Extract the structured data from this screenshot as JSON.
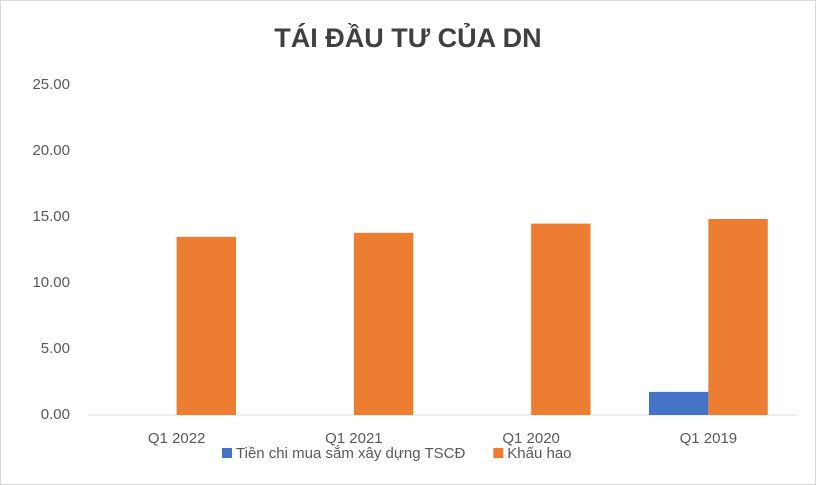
{
  "chart_data": {
    "type": "bar",
    "title": "TÁI ĐẦU TƯ CỦA DN",
    "categories": [
      "Q1 2022",
      "Q1 2021",
      "Q1 2020",
      "Q1 2019"
    ],
    "series": [
      {
        "name": "Tiền chi mua sắm xây dựng TSCĐ",
        "color": "#4472c4",
        "values": [
          0,
          0,
          0,
          1.75
        ]
      },
      {
        "name": "Khấu hao",
        "color": "#ed7d31",
        "values": [
          13.5,
          13.8,
          14.5,
          14.85
        ]
      }
    ],
    "ylim": [
      0,
      25
    ],
    "yticks": [
      {
        "value": 0,
        "label": "0.00"
      },
      {
        "value": 5,
        "label": "5.00"
      },
      {
        "value": 10,
        "label": "10.00"
      },
      {
        "value": 15,
        "label": "15.00"
      },
      {
        "value": 20,
        "label": "20.00"
      },
      {
        "value": 25,
        "label": "25.00"
      }
    ],
    "grid": false,
    "legend": "bottom"
  }
}
